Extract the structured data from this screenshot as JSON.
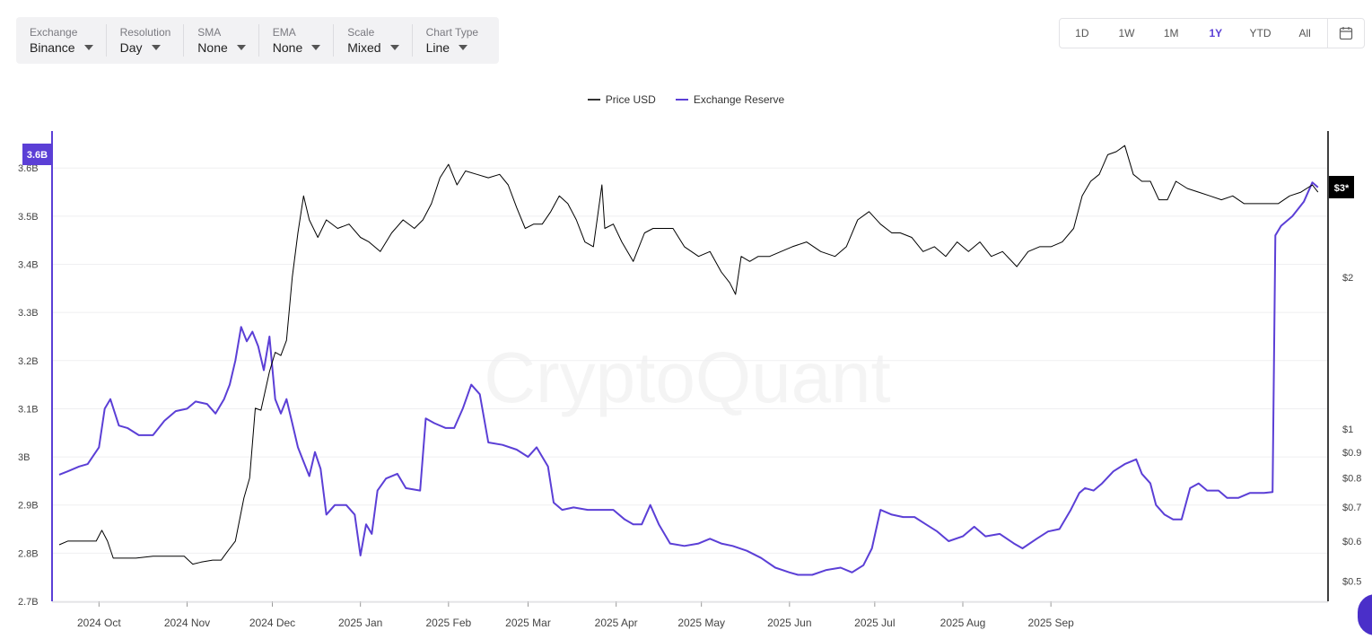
{
  "toolbar": {
    "controls": [
      {
        "label": "Exchange",
        "value": "Binance"
      },
      {
        "label": "Resolution",
        "value": "Day"
      },
      {
        "label": "SMA",
        "value": "None"
      },
      {
        "label": "EMA",
        "value": "None"
      },
      {
        "label": "Scale",
        "value": "Mixed"
      },
      {
        "label": "Chart Type",
        "value": "Line"
      }
    ]
  },
  "range": {
    "buttons": [
      "1D",
      "1W",
      "1M",
      "1Y",
      "YTD",
      "All"
    ],
    "active": "1Y"
  },
  "legend": [
    {
      "name": "Price USD",
      "color": "#333333"
    },
    {
      "name": "Exchange Reserve",
      "color": "#5b3fd6"
    }
  ],
  "watermark": "CryptoQuant",
  "chart_data": {
    "type": "line",
    "left_axis": {
      "ticks": [
        "2.7B",
        "2.8B",
        "2.9B",
        "3B",
        "3.1B",
        "3.2B",
        "3.3B",
        "3.4B",
        "3.5B",
        "3.6B"
      ],
      "current_badge": "3.6B",
      "color": "#5b3fd6"
    },
    "right_axis": {
      "scale": "log",
      "ticks": [
        "$0.5",
        "$0.6",
        "$0.7",
        "$0.8",
        "$0.9",
        "$1",
        "$2"
      ],
      "current_badge": "$3*",
      "color": "#000000"
    },
    "x_labels": [
      "2024 Oct",
      "2024 Nov",
      "2024 Dec",
      "2025 Jan",
      "2025 Feb",
      "2025 Mar",
      "2025 Apr",
      "2025 May",
      "2025 Jun",
      "2025 Jul",
      "2025 Aug",
      "2025 Sep"
    ],
    "series": [
      {
        "name": "Exchange Reserve",
        "axis": "left",
        "color": "#5b3fd6",
        "points": [
          [
            "2024-09-17",
            2.963
          ],
          [
            "2024-09-20",
            2.97
          ],
          [
            "2024-09-24",
            2.98
          ],
          [
            "2024-09-27",
            2.985
          ],
          [
            "2024-10-01",
            3.02
          ],
          [
            "2024-10-03",
            3.1
          ],
          [
            "2024-10-05",
            3.12
          ],
          [
            "2024-10-08",
            3.065
          ],
          [
            "2024-10-11",
            3.06
          ],
          [
            "2024-10-15",
            3.045
          ],
          [
            "2024-10-20",
            3.045
          ],
          [
            "2024-10-24",
            3.075
          ],
          [
            "2024-10-28",
            3.095
          ],
          [
            "2024-11-01",
            3.1
          ],
          [
            "2024-11-04",
            3.115
          ],
          [
            "2024-11-08",
            3.11
          ],
          [
            "2024-11-11",
            3.09
          ],
          [
            "2024-11-14",
            3.12
          ],
          [
            "2024-11-16",
            3.15
          ],
          [
            "2024-11-18",
            3.2
          ],
          [
            "2024-11-20",
            3.27
          ],
          [
            "2024-11-22",
            3.24
          ],
          [
            "2024-11-24",
            3.26
          ],
          [
            "2024-11-26",
            3.23
          ],
          [
            "2024-11-28",
            3.18
          ],
          [
            "2024-11-30",
            3.25
          ],
          [
            "2024-12-02",
            3.12
          ],
          [
            "2024-12-04",
            3.09
          ],
          [
            "2024-12-06",
            3.12
          ],
          [
            "2024-12-08",
            3.07
          ],
          [
            "2024-12-10",
            3.02
          ],
          [
            "2024-12-12",
            2.99
          ],
          [
            "2024-12-14",
            2.96
          ],
          [
            "2024-12-16",
            3.01
          ],
          [
            "2024-12-18",
            2.975
          ],
          [
            "2024-12-20",
            2.88
          ],
          [
            "2024-12-23",
            2.9
          ],
          [
            "2024-12-27",
            2.9
          ],
          [
            "2024-12-30",
            2.88
          ],
          [
            "2025-01-01",
            2.795
          ],
          [
            "2025-01-03",
            2.86
          ],
          [
            "2025-01-05",
            2.84
          ],
          [
            "2025-01-07",
            2.93
          ],
          [
            "2025-01-10",
            2.955
          ],
          [
            "2025-01-14",
            2.965
          ],
          [
            "2025-01-17",
            2.935
          ],
          [
            "2025-01-22",
            2.93
          ],
          [
            "2025-01-24",
            3.08
          ],
          [
            "2025-01-27",
            3.07
          ],
          [
            "2025-01-31",
            3.06
          ],
          [
            "2025-02-03",
            3.06
          ],
          [
            "2025-02-06",
            3.1
          ],
          [
            "2025-02-09",
            3.15
          ],
          [
            "2025-02-12",
            3.13
          ],
          [
            "2025-02-15",
            3.03
          ],
          [
            "2025-02-20",
            3.025
          ],
          [
            "2025-02-25",
            3.015
          ],
          [
            "2025-03-01",
            3.0
          ],
          [
            "2025-03-04",
            3.02
          ],
          [
            "2025-03-08",
            2.98
          ],
          [
            "2025-03-10",
            2.905
          ],
          [
            "2025-03-13",
            2.89
          ],
          [
            "2025-03-17",
            2.895
          ],
          [
            "2025-03-22",
            2.89
          ],
          [
            "2025-03-27",
            2.89
          ],
          [
            "2025-03-31",
            2.89
          ],
          [
            "2025-04-04",
            2.87
          ],
          [
            "2025-04-07",
            2.86
          ],
          [
            "2025-04-10",
            2.86
          ],
          [
            "2025-04-13",
            2.9
          ],
          [
            "2025-04-16",
            2.86
          ],
          [
            "2025-04-20",
            2.82
          ],
          [
            "2025-04-25",
            2.815
          ],
          [
            "2025-04-30",
            2.82
          ],
          [
            "2025-05-04",
            2.83
          ],
          [
            "2025-05-08",
            2.82
          ],
          [
            "2025-05-12",
            2.815
          ],
          [
            "2025-05-17",
            2.805
          ],
          [
            "2025-05-22",
            2.79
          ],
          [
            "2025-05-27",
            2.77
          ],
          [
            "2025-06-01",
            2.76
          ],
          [
            "2025-06-04",
            2.755
          ],
          [
            "2025-06-09",
            2.755
          ],
          [
            "2025-06-14",
            2.765
          ],
          [
            "2025-06-19",
            2.77
          ],
          [
            "2025-06-23",
            2.76
          ],
          [
            "2025-06-27",
            2.775
          ],
          [
            "2025-06-30",
            2.81
          ],
          [
            "2025-07-03",
            2.89
          ],
          [
            "2025-07-07",
            2.88
          ],
          [
            "2025-07-11",
            2.875
          ],
          [
            "2025-07-15",
            2.875
          ],
          [
            "2025-07-19",
            2.86
          ],
          [
            "2025-07-23",
            2.845
          ],
          [
            "2025-07-27",
            2.825
          ],
          [
            "2025-08-01",
            2.835
          ],
          [
            "2025-08-05",
            2.855
          ],
          [
            "2025-08-09",
            2.835
          ],
          [
            "2025-08-14",
            2.84
          ],
          [
            "2025-08-19",
            2.82
          ],
          [
            "2025-08-22",
            2.81
          ],
          [
            "2025-08-27",
            2.83
          ],
          [
            "2025-08-31",
            2.845
          ],
          [
            "2025-09-04",
            2.85
          ],
          [
            "2025-09-08",
            2.89
          ],
          [
            "2025-09-11",
            2.925
          ],
          [
            "2025-09-13",
            2.935
          ],
          [
            "2025-09-16",
            2.93
          ],
          [
            "2025-09-19",
            2.945
          ],
          [
            "2025-09-23",
            2.97
          ],
          [
            "2025-09-27",
            2.985
          ],
          [
            "2025-10-01",
            2.995
          ],
          [
            "2025-10-03",
            2.965
          ],
          [
            "2025-10-06",
            2.945
          ],
          [
            "2025-10-08",
            2.9
          ],
          [
            "2025-10-11",
            2.88
          ],
          [
            "2025-10-14",
            2.87
          ],
          [
            "2025-10-17",
            2.87
          ],
          [
            "2025-10-20",
            2.935
          ],
          [
            "2025-10-23",
            2.945
          ],
          [
            "2025-10-26",
            2.93
          ],
          [
            "2025-10-30",
            2.93
          ],
          [
            "2025-11-02",
            2.915
          ],
          [
            "2025-11-06",
            2.915
          ],
          [
            "2025-11-10",
            2.925
          ],
          [
            "2025-11-15",
            2.925
          ],
          [
            "2025-11-18",
            2.927
          ],
          [
            "2025-11-19",
            3.46
          ],
          [
            "2025-11-21",
            3.48
          ],
          [
            "2025-11-25",
            3.5
          ],
          [
            "2025-11-29",
            3.53
          ],
          [
            "2025-12-02",
            3.57
          ],
          [
            "2025-12-04",
            3.56
          ]
        ]
      },
      {
        "name": "Price USD",
        "axis": "right",
        "color": "#000000",
        "points": [
          [
            "2024-09-17",
            0.59
          ],
          [
            "2024-09-20",
            0.6
          ],
          [
            "2024-09-25",
            0.6
          ],
          [
            "2024-09-30",
            0.6
          ],
          [
            "2024-10-02",
            0.63
          ],
          [
            "2024-10-04",
            0.6
          ],
          [
            "2024-10-06",
            0.555
          ],
          [
            "2024-10-09",
            0.555
          ],
          [
            "2024-10-14",
            0.555
          ],
          [
            "2024-10-20",
            0.56
          ],
          [
            "2024-10-26",
            0.56
          ],
          [
            "2024-10-31",
            0.56
          ],
          [
            "2024-11-03",
            0.54
          ],
          [
            "2024-11-06",
            0.545
          ],
          [
            "2024-11-10",
            0.55
          ],
          [
            "2024-11-13",
            0.55
          ],
          [
            "2024-11-15",
            0.57
          ],
          [
            "2024-11-18",
            0.6
          ],
          [
            "2024-11-21",
            0.73
          ],
          [
            "2024-11-23",
            0.8
          ],
          [
            "2024-11-25",
            1.1
          ],
          [
            "2024-11-27",
            1.09
          ],
          [
            "2024-11-30",
            1.3
          ],
          [
            "2024-12-02",
            1.42
          ],
          [
            "2024-12-04",
            1.4
          ],
          [
            "2024-12-06",
            1.5
          ],
          [
            "2024-12-08",
            2.0
          ],
          [
            "2024-12-10",
            2.45
          ],
          [
            "2024-12-12",
            2.9
          ],
          [
            "2024-12-14",
            2.6
          ],
          [
            "2024-12-17",
            2.4
          ],
          [
            "2024-12-20",
            2.6
          ],
          [
            "2024-12-24",
            2.5
          ],
          [
            "2024-12-28",
            2.55
          ],
          [
            "2025-01-01",
            2.4
          ],
          [
            "2025-01-04",
            2.35
          ],
          [
            "2025-01-08",
            2.25
          ],
          [
            "2025-01-12",
            2.45
          ],
          [
            "2025-01-16",
            2.6
          ],
          [
            "2025-01-20",
            2.5
          ],
          [
            "2025-01-23",
            2.6
          ],
          [
            "2025-01-26",
            2.8
          ],
          [
            "2025-01-29",
            3.15
          ],
          [
            "2025-02-01",
            3.35
          ],
          [
            "2025-02-04",
            3.05
          ],
          [
            "2025-02-07",
            3.25
          ],
          [
            "2025-02-11",
            3.2
          ],
          [
            "2025-02-15",
            3.15
          ],
          [
            "2025-02-19",
            3.2
          ],
          [
            "2025-02-22",
            3.05
          ],
          [
            "2025-02-25",
            2.75
          ],
          [
            "2025-02-28",
            2.5
          ],
          [
            "2025-03-03",
            2.55
          ],
          [
            "2025-03-06",
            2.55
          ],
          [
            "2025-03-09",
            2.7
          ],
          [
            "2025-03-12",
            2.9
          ],
          [
            "2025-03-15",
            2.8
          ],
          [
            "2025-03-18",
            2.6
          ],
          [
            "2025-03-21",
            2.35
          ],
          [
            "2025-03-24",
            2.3
          ],
          [
            "2025-03-27",
            3.05
          ],
          [
            "2025-03-28",
            2.5
          ],
          [
            "2025-03-31",
            2.55
          ],
          [
            "2025-04-03",
            2.35
          ],
          [
            "2025-04-07",
            2.15
          ],
          [
            "2025-04-11",
            2.45
          ],
          [
            "2025-04-14",
            2.5
          ],
          [
            "2025-04-18",
            2.5
          ],
          [
            "2025-04-21",
            2.5
          ],
          [
            "2025-04-25",
            2.3
          ],
          [
            "2025-04-30",
            2.2
          ],
          [
            "2025-05-04",
            2.25
          ],
          [
            "2025-05-08",
            2.05
          ],
          [
            "2025-05-11",
            1.95
          ],
          [
            "2025-05-13",
            1.85
          ],
          [
            "2025-05-15",
            2.2
          ],
          [
            "2025-05-18",
            2.15
          ],
          [
            "2025-05-21",
            2.2
          ],
          [
            "2025-05-25",
            2.2
          ],
          [
            "2025-05-29",
            2.25
          ],
          [
            "2025-06-02",
            2.3
          ],
          [
            "2025-06-07",
            2.35
          ],
          [
            "2025-06-12",
            2.25
          ],
          [
            "2025-06-17",
            2.2
          ],
          [
            "2025-06-21",
            2.3
          ],
          [
            "2025-06-25",
            2.6
          ],
          [
            "2025-06-29",
            2.7
          ],
          [
            "2025-07-03",
            2.55
          ],
          [
            "2025-07-07",
            2.45
          ],
          [
            "2025-07-10",
            2.45
          ],
          [
            "2025-07-14",
            2.4
          ],
          [
            "2025-07-18",
            2.25
          ],
          [
            "2025-07-22",
            2.3
          ],
          [
            "2025-07-26",
            2.2
          ],
          [
            "2025-07-30",
            2.35
          ],
          [
            "2025-08-03",
            2.25
          ],
          [
            "2025-08-07",
            2.35
          ],
          [
            "2025-08-11",
            2.2
          ],
          [
            "2025-08-15",
            2.25
          ],
          [
            "2025-08-20",
            2.1
          ],
          [
            "2025-08-24",
            2.25
          ],
          [
            "2025-08-28",
            2.3
          ],
          [
            "2025-09-01",
            2.3
          ],
          [
            "2025-09-05",
            2.35
          ],
          [
            "2025-09-09",
            2.5
          ],
          [
            "2025-09-12",
            2.9
          ],
          [
            "2025-09-15",
            3.1
          ],
          [
            "2025-09-18",
            3.2
          ],
          [
            "2025-09-21",
            3.5
          ],
          [
            "2025-09-24",
            3.55
          ],
          [
            "2025-09-27",
            3.65
          ],
          [
            "2025-09-30",
            3.2
          ],
          [
            "2025-10-03",
            3.1
          ],
          [
            "2025-10-06",
            3.1
          ],
          [
            "2025-10-09",
            2.85
          ],
          [
            "2025-10-12",
            2.85
          ],
          [
            "2025-10-15",
            3.1
          ],
          [
            "2025-10-19",
            3.0
          ],
          [
            "2025-10-23",
            2.95
          ],
          [
            "2025-10-27",
            2.9
          ],
          [
            "2025-10-31",
            2.85
          ],
          [
            "2025-11-04",
            2.9
          ],
          [
            "2025-11-08",
            2.8
          ],
          [
            "2025-11-12",
            2.8
          ],
          [
            "2025-11-16",
            2.8
          ],
          [
            "2025-11-20",
            2.8
          ],
          [
            "2025-11-24",
            2.9
          ],
          [
            "2025-11-28",
            2.95
          ],
          [
            "2025-12-02",
            3.05
          ],
          [
            "2025-12-04",
            2.95
          ]
        ]
      }
    ]
  }
}
